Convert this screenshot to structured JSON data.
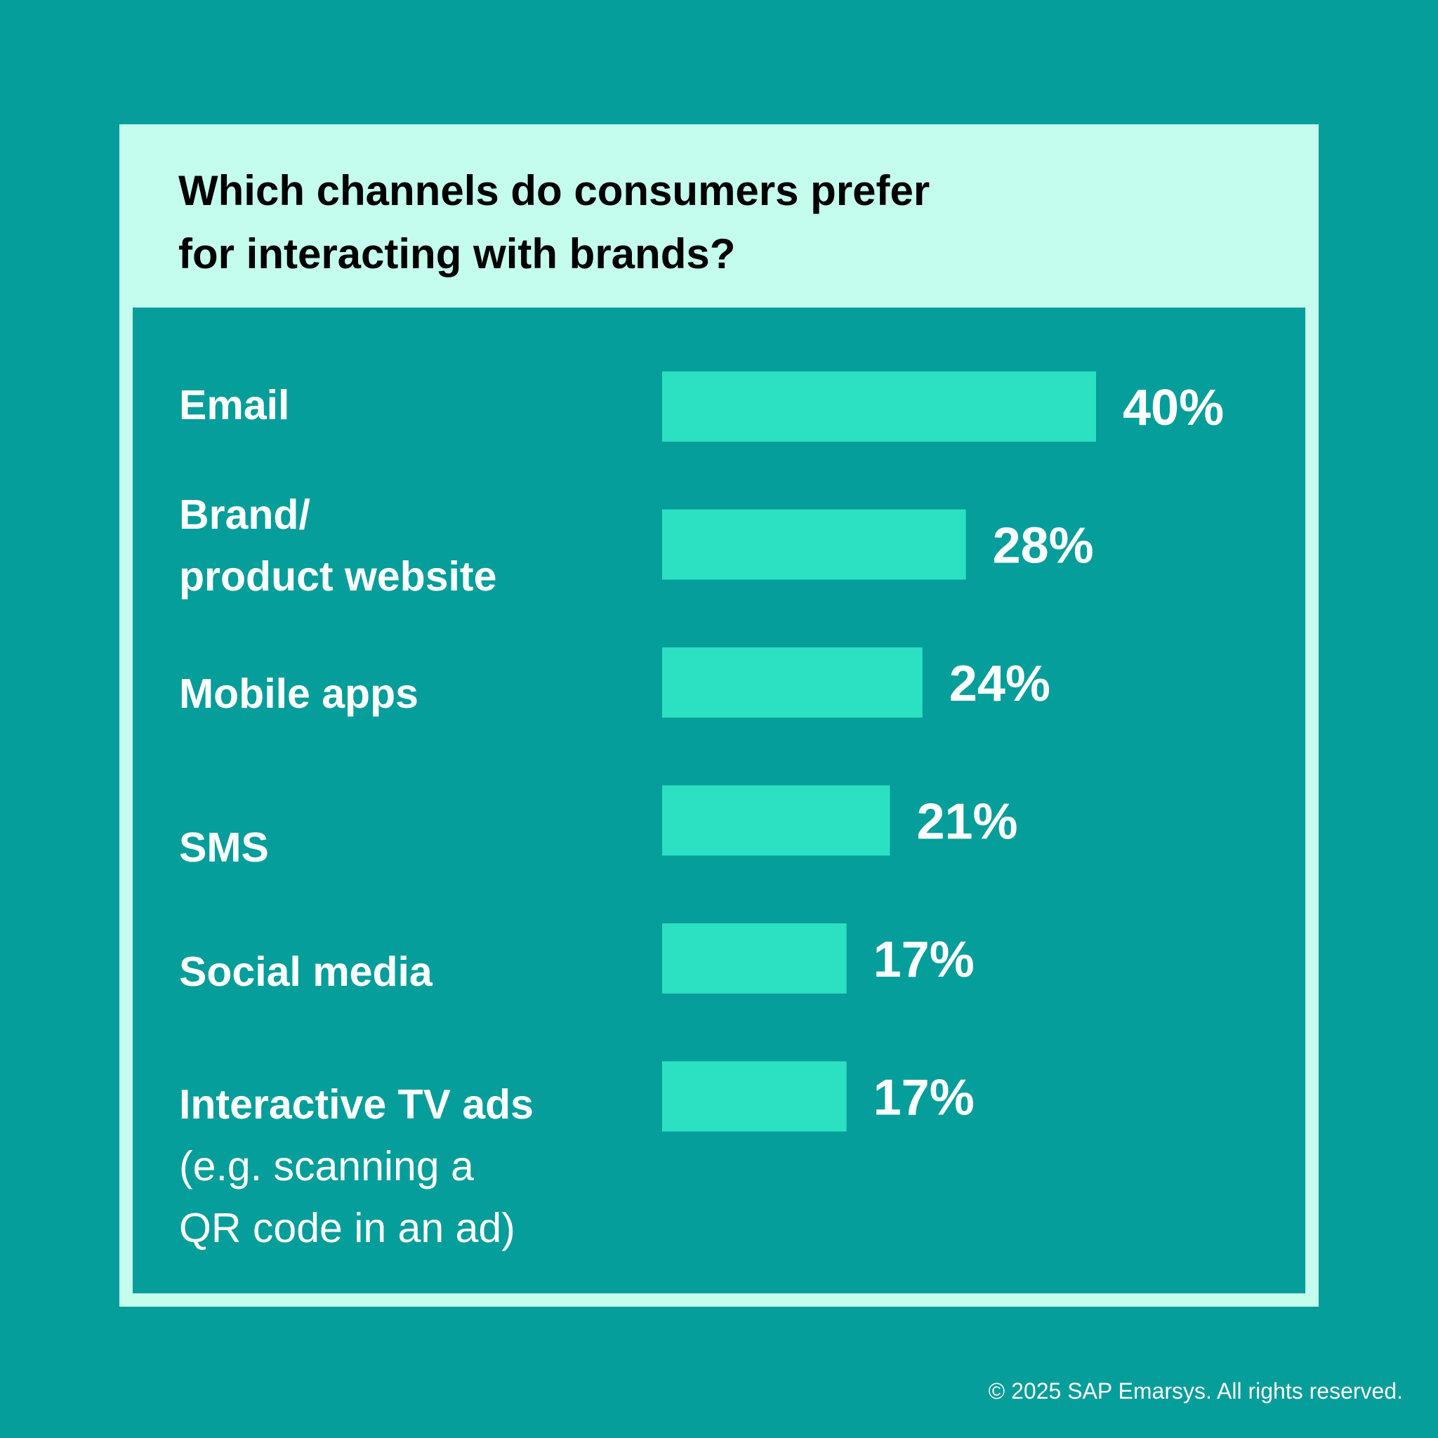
{
  "colors": {
    "background": "#059e9a",
    "panel": "#c4fcee",
    "bar": "#2ce0c2",
    "text": "#ffffff"
  },
  "chart_data": {
    "type": "bar",
    "orientation": "horizontal",
    "title": "Which channels do consumers prefer for interacting with brands?",
    "title_lines": [
      "Which channels do consumers prefer",
      "for interacting with brands?"
    ],
    "categories": [
      "Email",
      "Brand/ product website",
      "Mobile apps",
      "SMS",
      "Social media",
      "Interactive TV ads (e.g. scanning a QR code in an ad)"
    ],
    "category_lines": [
      [
        "Email"
      ],
      [
        "Brand/",
        "product website"
      ],
      [
        "Mobile apps"
      ],
      [
        "SMS"
      ],
      [
        "Social media"
      ],
      [
        "Interactive TV ads",
        "(e.g. scanning a",
        "QR code in an ad)"
      ]
    ],
    "values": [
      40,
      28,
      24,
      21,
      17,
      17
    ],
    "value_labels": [
      "40%",
      "28%",
      "24%",
      "21%",
      "17%",
      "17%"
    ],
    "unit": "%",
    "xlim": [
      0,
      40
    ],
    "grid": false,
    "legend": "none"
  },
  "footer": {
    "copyright": "© 2025 SAP Emarsys. All rights reserved."
  }
}
